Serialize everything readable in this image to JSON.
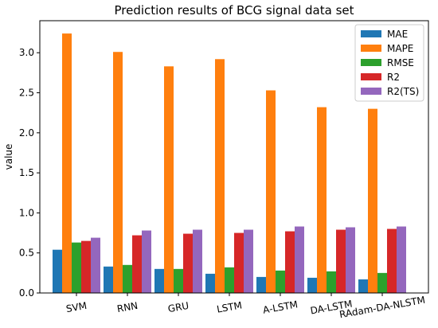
{
  "chart_data": {
    "type": "bar",
    "title": "Prediction results of BCG signal data set",
    "xlabel": "",
    "ylabel": "value",
    "ylim": [
      0,
      3.4
    ],
    "yticks": [
      "0.0",
      "0.5",
      "1.0",
      "1.5",
      "2.0",
      "2.5",
      "3.0"
    ],
    "grid": false,
    "legend_position": "top-right",
    "categories": [
      "SVM",
      "RNN",
      "GRU",
      "LSTM",
      "A-LSTM",
      "DA-LSTM",
      "RAdam-DA-NLSTM"
    ],
    "series": [
      {
        "name": "MAE",
        "color": "#1f77b4",
        "values": [
          0.54,
          0.33,
          0.3,
          0.24,
          0.2,
          0.19,
          0.17
        ]
      },
      {
        "name": "MAPE",
        "color": "#ff7f0e",
        "values": [
          3.24,
          3.01,
          2.83,
          2.92,
          2.53,
          2.32,
          2.3
        ]
      },
      {
        "name": "RMSE",
        "color": "#2ca02c",
        "values": [
          0.63,
          0.35,
          0.3,
          0.32,
          0.28,
          0.27,
          0.25
        ]
      },
      {
        "name": "R2",
        "color": "#d62728",
        "values": [
          0.65,
          0.72,
          0.74,
          0.75,
          0.77,
          0.79,
          0.8
        ]
      },
      {
        "name": "R2(TS)",
        "color": "#9467bd",
        "values": [
          0.69,
          0.78,
          0.79,
          0.79,
          0.83,
          0.82,
          0.83
        ]
      }
    ]
  }
}
